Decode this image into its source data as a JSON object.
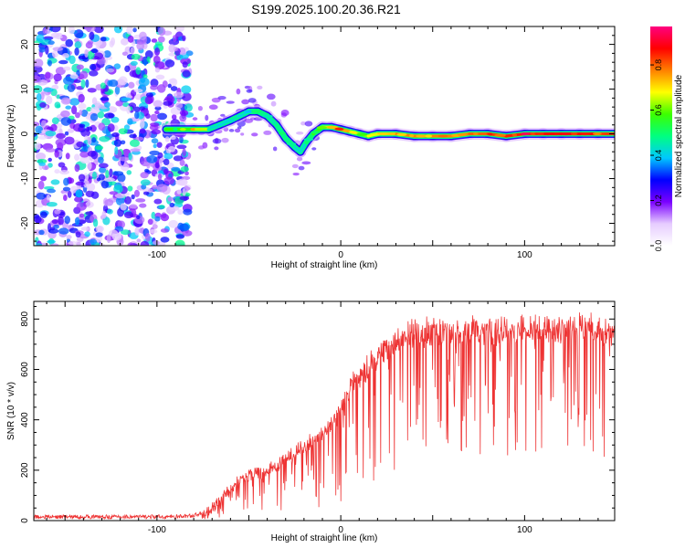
{
  "title": "S199.2025.100.20.36.R21",
  "chart_data": [
    {
      "type": "heatmap",
      "xlabel": "Height of straight line (km)",
      "ylabel": "Frequency (Hz)",
      "xlim": [
        -167,
        149
      ],
      "ylim": [
        -25,
        24
      ],
      "xticks": [
        -100,
        0,
        100
      ],
      "yticks": [
        20,
        10,
        0,
        -10,
        -20
      ],
      "colorbar": {
        "label": "Normalized spectral amplitude",
        "range": [
          0,
          0.97
        ],
        "ticks": [
          0.0,
          0.2,
          0.4,
          0.6,
          0.8
        ],
        "colormap": [
          "#ffffff",
          "#e6ccff",
          "#7a00ff",
          "#0000ff",
          "#00c8ff",
          "#00ff80",
          "#3cff00",
          "#ffff00",
          "#ff8000",
          "#ff0000",
          "#ff0080"
        ]
      },
      "signal_track": {
        "x": [
          -95,
          -80,
          -72,
          -66,
          -60,
          -55,
          -50,
          -45,
          -40,
          -35,
          -30,
          -25,
          -22,
          -19,
          -15,
          -10,
          -5,
          0,
          5,
          10,
          15,
          20,
          30,
          40,
          50,
          60,
          70,
          80,
          90,
          100,
          110,
          120,
          130,
          140,
          149
        ],
        "y": [
          1,
          1,
          1,
          2,
          3,
          4,
          5,
          5,
          4,
          2,
          -1,
          -3,
          -4,
          -2,
          0,
          1.5,
          1.5,
          1,
          0.5,
          0,
          -0.5,
          0,
          0,
          -0.5,
          -0.5,
          -0.5,
          0,
          0,
          -0.5,
          0,
          0,
          0,
          0,
          0,
          0
        ],
        "amplitude": [
          0.35,
          0.8,
          0.5,
          0.4,
          0.45,
          0.45,
          0.4,
          0.5,
          0.45,
          0.45,
          0.5,
          0.45,
          0.4,
          0.45,
          0.55,
          0.6,
          0.7,
          0.85,
          0.7,
          0.6,
          0.65,
          0.7,
          0.75,
          0.8,
          0.75,
          0.8,
          0.75,
          0.85,
          0.8,
          0.9,
          0.9,
          0.85,
          0.9,
          0.85,
          0.8
        ]
      },
      "noise_region": {
        "x_range": [
          -167,
          -82
        ],
        "amplitude_range": [
          0.05,
          0.3
        ]
      }
    },
    {
      "type": "line",
      "xlabel": "Height of straight line (km)",
      "ylabel": "SNR (10 * v/v)",
      "xlim": [
        -167,
        149
      ],
      "ylim": [
        0,
        870
      ],
      "xticks": [
        -100,
        0,
        100
      ],
      "yticks": [
        0,
        200,
        400,
        600,
        800
      ],
      "series": [
        {
          "color": "#ee3333",
          "envelope": {
            "x": [
              -167,
              -120,
              -90,
              -80,
              -72,
              -65,
              -58,
              -50,
              -40,
              -30,
              -20,
              -15,
              -10,
              -5,
              0,
              5,
              10,
              15,
              20,
              25,
              30,
              35,
              40,
              45,
              50,
              60,
              70,
              80,
              90,
              100,
              110,
              120,
              130,
              140,
              149
            ],
            "y": [
              15,
              15,
              15,
              20,
              40,
              90,
              150,
              200,
              210,
              260,
              310,
              340,
              360,
              420,
              480,
              560,
              600,
              650,
              690,
              730,
              750,
              780,
              790,
              790,
              800,
              800,
              810,
              800,
              800,
              810,
              800,
              810,
              830,
              800,
              780
            ]
          },
          "dip_depth_range": [
            0,
            550
          ]
        }
      ]
    }
  ]
}
